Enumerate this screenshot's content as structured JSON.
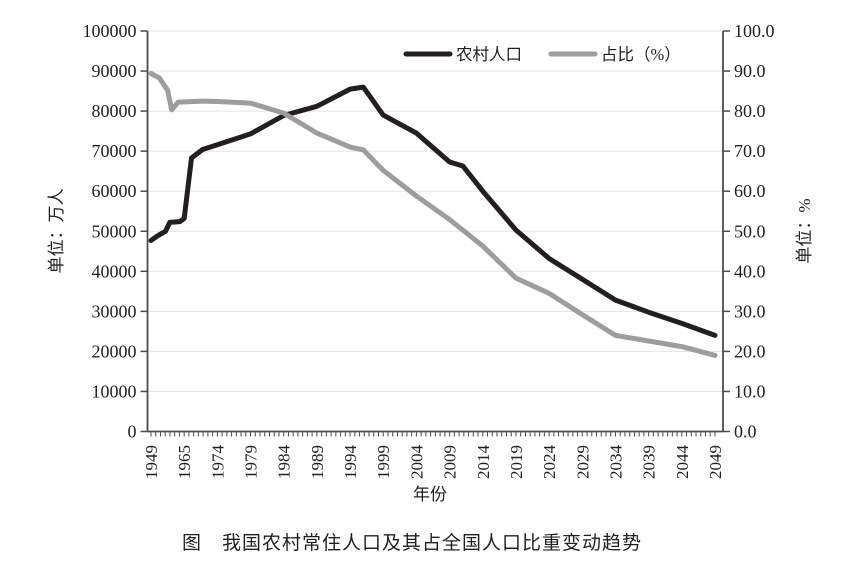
{
  "chart": {
    "left_axis_title": "单位：万人",
    "right_axis_title": "单位：%",
    "x_axis_title": "年份",
    "caption": "图　我国农村常住人口及其占全国人口比重变动趋势",
    "colors": {
      "rural_line": "#231f20",
      "share_line": "#9d9d9d",
      "grid": "#e4e4e4",
      "axis": "#4d4d4d",
      "text": "#231f20",
      "background": "#ffffff"
    }
  },
  "chart_data": {
    "type": "line",
    "title": "图　我国农村常住人口及其占全国人口比重变动趋势",
    "xlabel": "年份",
    "ylabel_left": "单位：万人",
    "ylabel_right": "单位：%",
    "grid": "horizontal",
    "legend_position": "top-inside",
    "x_tick_labels": [
      "1949",
      "1965",
      "1974",
      "1979",
      "1984",
      "1989",
      "1994",
      "1999",
      "2004",
      "2009",
      "2014",
      "2019",
      "2024",
      "2029",
      "2034",
      "2039",
      "2044",
      "2049"
    ],
    "left_axis": {
      "min": 0,
      "max": 100000,
      "step": 10000,
      "tick_labels": [
        "0",
        "10000",
        "20000",
        "30000",
        "40000",
        "50000",
        "60000",
        "70000",
        "80000",
        "90000",
        "100000"
      ]
    },
    "right_axis": {
      "min": 0.0,
      "max": 100.0,
      "step": 10.0,
      "tick_labels": [
        "0.0",
        "10.0",
        "20.0",
        "30.0",
        "40.0",
        "50.0",
        "60.0",
        "70.0",
        "80.0",
        "90.0",
        "100.0"
      ]
    },
    "minor_ticks_per_label_interval": 7,
    "series": [
      {
        "name": "农村人口",
        "axis": "left",
        "color": "#231f20",
        "points": [
          [
            1949,
            47700
          ],
          [
            1952,
            48800
          ],
          [
            1956,
            50000
          ],
          [
            1958,
            52200
          ],
          [
            1963,
            52400
          ],
          [
            1965,
            53200
          ],
          [
            1967,
            68300
          ],
          [
            1970,
            70400
          ],
          [
            1974,
            71600
          ],
          [
            1979,
            74300
          ],
          [
            1984,
            78900
          ],
          [
            1989,
            81200
          ],
          [
            1994,
            85500
          ],
          [
            1996,
            86000
          ],
          [
            1999,
            79000
          ],
          [
            2004,
            74500
          ],
          [
            2009,
            67300
          ],
          [
            2011,
            66300
          ],
          [
            2014,
            60000
          ],
          [
            2019,
            50300
          ],
          [
            2024,
            43200
          ],
          [
            2029,
            38000
          ],
          [
            2034,
            32800
          ],
          [
            2039,
            29800
          ],
          [
            2044,
            27000
          ],
          [
            2049,
            24000
          ]
        ]
      },
      {
        "name": "占比（%）",
        "axis": "right",
        "color": "#9d9d9d",
        "points": [
          [
            1949,
            89.4
          ],
          [
            1953,
            88.3
          ],
          [
            1957,
            85.2
          ],
          [
            1959,
            80.3
          ],
          [
            1962,
            82.2
          ],
          [
            1965,
            82.3
          ],
          [
            1970,
            82.5
          ],
          [
            1974,
            82.4
          ],
          [
            1979,
            82.0
          ],
          [
            1984,
            79.5
          ],
          [
            1989,
            74.5
          ],
          [
            1994,
            71.0
          ],
          [
            1996,
            70.3
          ],
          [
            1999,
            65.2
          ],
          [
            2004,
            58.8
          ],
          [
            2009,
            52.9
          ],
          [
            2014,
            46.3
          ],
          [
            2019,
            38.3
          ],
          [
            2024,
            34.5
          ],
          [
            2029,
            29.2
          ],
          [
            2034,
            24.0
          ],
          [
            2039,
            22.6
          ],
          [
            2044,
            21.2
          ],
          [
            2049,
            19.0
          ]
        ]
      }
    ]
  }
}
